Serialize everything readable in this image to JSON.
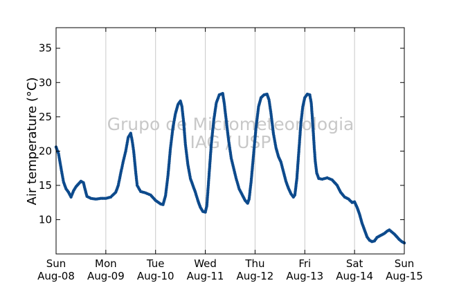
{
  "chart_data": {
    "type": "scatter",
    "title": "",
    "xlabel": "",
    "ylabel": "Air temperature (°C)",
    "watermark": [
      "Grupo de Micrometeorologia",
      "IAG / USP"
    ],
    "x_unit": "days",
    "xlim": [
      0,
      7
    ],
    "ylim": [
      5,
      38
    ],
    "yticks": [
      10,
      15,
      20,
      25,
      30,
      35
    ],
    "xticks": [
      {
        "day": "Sun",
        "date": "Aug-08"
      },
      {
        "day": "Mon",
        "date": "Aug-09"
      },
      {
        "day": "Tue",
        "date": "Aug-10"
      },
      {
        "day": "Wed",
        "date": "Aug-11"
      },
      {
        "day": "Thu",
        "date": "Aug-12"
      },
      {
        "day": "Fri",
        "date": "Aug-13"
      },
      {
        "day": "Sat",
        "date": "Aug-14"
      },
      {
        "day": "Sun",
        "date": "Aug-15"
      }
    ],
    "grid": "vertical",
    "marker_color": "#0d4a8c",
    "series": [
      {
        "name": "",
        "points": [
          [
            0.0,
            20.6
          ],
          [
            0.05,
            19.6
          ],
          [
            0.1,
            17.5
          ],
          [
            0.15,
            15.5
          ],
          [
            0.2,
            14.5
          ],
          [
            0.25,
            14.0
          ],
          [
            0.3,
            13.3
          ],
          [
            0.35,
            14.2
          ],
          [
            0.4,
            14.8
          ],
          [
            0.45,
            15.2
          ],
          [
            0.5,
            15.6
          ],
          [
            0.55,
            15.4
          ],
          [
            0.58,
            14.5
          ],
          [
            0.62,
            13.4
          ],
          [
            0.7,
            13.1
          ],
          [
            0.8,
            13.0
          ],
          [
            0.9,
            13.1
          ],
          [
            1.0,
            13.1
          ],
          [
            1.1,
            13.3
          ],
          [
            1.2,
            14.0
          ],
          [
            1.25,
            15.0
          ],
          [
            1.3,
            16.8
          ],
          [
            1.35,
            18.5
          ],
          [
            1.4,
            20.0
          ],
          [
            1.45,
            22.0
          ],
          [
            1.5,
            22.6
          ],
          [
            1.53,
            21.5
          ],
          [
            1.56,
            20.0
          ],
          [
            1.6,
            17.0
          ],
          [
            1.63,
            15.0
          ],
          [
            1.7,
            14.1
          ],
          [
            1.8,
            13.9
          ],
          [
            1.9,
            13.6
          ],
          [
            2.0,
            12.8
          ],
          [
            2.1,
            12.3
          ],
          [
            2.15,
            12.2
          ],
          [
            2.2,
            13.5
          ],
          [
            2.25,
            16.5
          ],
          [
            2.3,
            20.5
          ],
          [
            2.35,
            23.5
          ],
          [
            2.4,
            25.5
          ],
          [
            2.45,
            26.8
          ],
          [
            2.5,
            27.3
          ],
          [
            2.53,
            26.5
          ],
          [
            2.56,
            24.5
          ],
          [
            2.6,
            21.0
          ],
          [
            2.65,
            18.0
          ],
          [
            2.7,
            16.0
          ],
          [
            2.75,
            15.0
          ],
          [
            2.8,
            14.0
          ],
          [
            2.85,
            12.8
          ],
          [
            2.9,
            11.8
          ],
          [
            2.95,
            11.2
          ],
          [
            3.0,
            11.1
          ],
          [
            3.03,
            12.0
          ],
          [
            3.07,
            16.0
          ],
          [
            3.12,
            21.0
          ],
          [
            3.17,
            24.5
          ],
          [
            3.22,
            27.0
          ],
          [
            3.28,
            28.2
          ],
          [
            3.35,
            28.4
          ],
          [
            3.38,
            27.0
          ],
          [
            3.42,
            24.5
          ],
          [
            3.47,
            21.5
          ],
          [
            3.52,
            19.0
          ],
          [
            3.57,
            17.5
          ],
          [
            3.62,
            16.0
          ],
          [
            3.68,
            14.5
          ],
          [
            3.75,
            13.5
          ],
          [
            3.8,
            12.8
          ],
          [
            3.85,
            12.4
          ],
          [
            3.88,
            13.0
          ],
          [
            3.92,
            15.5
          ],
          [
            3.97,
            19.5
          ],
          [
            4.02,
            23.5
          ],
          [
            4.07,
            26.5
          ],
          [
            4.12,
            27.8
          ],
          [
            4.18,
            28.2
          ],
          [
            4.24,
            28.3
          ],
          [
            4.28,
            27.5
          ],
          [
            4.32,
            25.5
          ],
          [
            4.37,
            22.5
          ],
          [
            4.42,
            20.5
          ],
          [
            4.47,
            19.2
          ],
          [
            4.52,
            18.4
          ],
          [
            4.57,
            17.0
          ],
          [
            4.62,
            15.6
          ],
          [
            4.67,
            14.6
          ],
          [
            4.72,
            13.8
          ],
          [
            4.77,
            13.3
          ],
          [
            4.8,
            13.6
          ],
          [
            4.84,
            16.0
          ],
          [
            4.88,
            20.0
          ],
          [
            4.92,
            24.0
          ],
          [
            4.96,
            26.5
          ],
          [
            5.0,
            27.8
          ],
          [
            5.05,
            28.3
          ],
          [
            5.1,
            28.2
          ],
          [
            5.13,
            27.0
          ],
          [
            5.15,
            25.0
          ],
          [
            5.17,
            22.8
          ],
          [
            5.19,
            20.5
          ],
          [
            5.21,
            18.5
          ],
          [
            5.24,
            16.8
          ],
          [
            5.28,
            16.0
          ],
          [
            5.35,
            15.9
          ],
          [
            5.45,
            16.1
          ],
          [
            5.55,
            15.8
          ],
          [
            5.65,
            15.0
          ],
          [
            5.72,
            14.0
          ],
          [
            5.8,
            13.3
          ],
          [
            5.88,
            13.0
          ],
          [
            5.95,
            12.5
          ],
          [
            6.0,
            12.6
          ],
          [
            6.05,
            11.8
          ],
          [
            6.1,
            10.8
          ],
          [
            6.15,
            9.5
          ],
          [
            6.2,
            8.5
          ],
          [
            6.25,
            7.5
          ],
          [
            6.3,
            7.0
          ],
          [
            6.35,
            6.8
          ],
          [
            6.4,
            6.9
          ],
          [
            6.45,
            7.4
          ],
          [
            6.5,
            7.6
          ],
          [
            6.55,
            7.8
          ],
          [
            6.6,
            8.0
          ],
          [
            6.65,
            8.3
          ],
          [
            6.7,
            8.5
          ],
          [
            6.75,
            8.2
          ],
          [
            6.8,
            7.9
          ],
          [
            6.85,
            7.5
          ],
          [
            6.9,
            7.1
          ],
          [
            6.95,
            6.8
          ],
          [
            7.0,
            6.6
          ]
        ]
      }
    ]
  }
}
